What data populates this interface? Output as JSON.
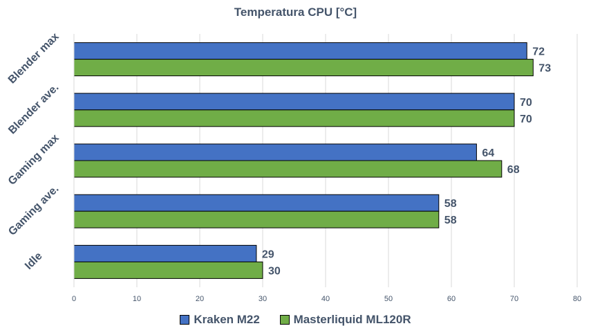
{
  "chart_data": {
    "type": "bar",
    "orientation": "horizontal",
    "title": "Temperatura CPU [°C]",
    "categories": [
      "Blender max",
      "Blender ave.",
      "Gaming max",
      "Gaming ave.",
      "Idle"
    ],
    "series": [
      {
        "name": "Kraken M22",
        "color": "#4472c4",
        "values": [
          72,
          70,
          64,
          58,
          29
        ]
      },
      {
        "name": "Masterliquid ML120R",
        "color": "#70ad47",
        "values": [
          73,
          70,
          68,
          58,
          30
        ]
      }
    ],
    "xlim": [
      0,
      80
    ],
    "xticks": [
      0,
      10,
      20,
      30,
      40,
      50,
      60,
      70,
      80
    ],
    "grid": true,
    "legend_position": "bottom",
    "data_labels": true
  }
}
